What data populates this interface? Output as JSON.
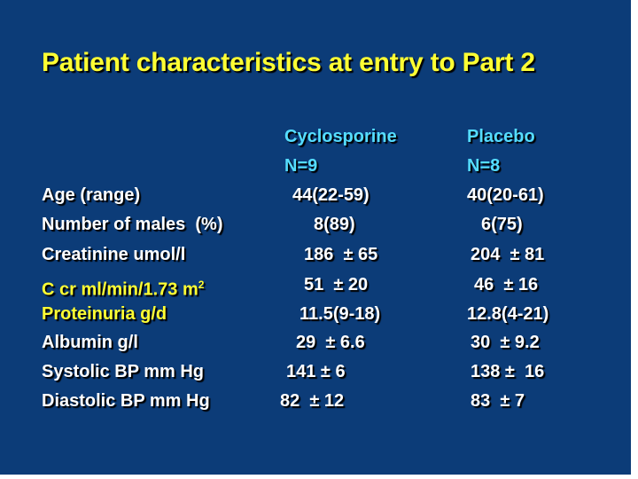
{
  "slide": {
    "title": "Patient characteristics at entry to Part 2",
    "columns": [
      {
        "name": "Cyclosporine",
        "n": "N=9"
      },
      {
        "name": "Placebo",
        "n": "N=8"
      }
    ],
    "rows": [
      {
        "label": "Age (range)",
        "sup": "",
        "cyclosporine": "44(22-59)",
        "placebo": "40(20-61)",
        "highlight": false
      },
      {
        "label": "Number of males  (%)",
        "sup": "",
        "cyclosporine": "8(89)",
        "placebo": "6(75)",
        "highlight": false
      },
      {
        "label": "Creatinine umol/l",
        "sup": "",
        "cyclosporine": "186  ± 65",
        "placebo": "204  ± 81",
        "highlight": false
      },
      {
        "label": "C cr ml/min/1.73 m",
        "sup": "2",
        "cyclosporine": "51  ± 20",
        "placebo": "46  ± 16",
        "highlight": true
      },
      {
        "label": "Proteinuria g/d",
        "sup": "",
        "cyclosporine": "11.5(9-18)",
        "placebo": "12.8(4-21)",
        "highlight": true
      },
      {
        "label": "Albumin g/l",
        "sup": "",
        "cyclosporine": "29  ± 6.6",
        "placebo": "30  ± 9.2",
        "highlight": false
      },
      {
        "label": "Systolic BP mm Hg",
        "sup": "",
        "cyclosporine": "141 ± 6",
        "placebo": "138 ±  16",
        "highlight": false
      },
      {
        "label": "Diastolic BP mm Hg",
        "sup": "",
        "cyclosporine": "82  ± 12",
        "placebo": "83  ± 7",
        "highlight": false
      }
    ]
  }
}
